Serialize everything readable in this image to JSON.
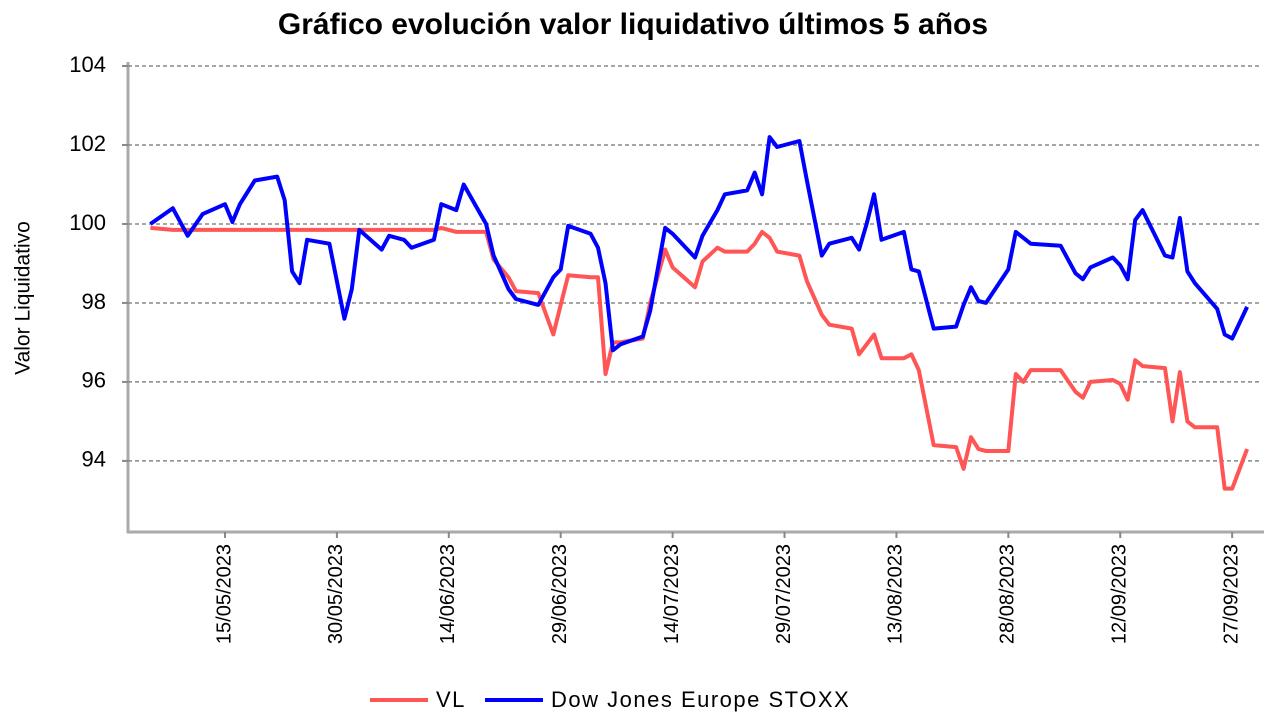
{
  "chart_data": {
    "type": "line",
    "title": "Gráfico evolución valor liquidativo últimos 5 años",
    "y_label": "Valor Liquidativo",
    "x": [
      "05/05/2023",
      "08/05/2023",
      "10/05/2023",
      "12/05/2023",
      "15/05/2023",
      "16/05/2023",
      "17/05/2023",
      "19/05/2023",
      "22/05/2023",
      "23/05/2023",
      "24/05/2023",
      "25/05/2023",
      "26/05/2023",
      "29/05/2023",
      "31/05/2023",
      "01/06/2023",
      "02/06/2023",
      "05/06/2023",
      "06/06/2023",
      "08/06/2023",
      "09/06/2023",
      "12/06/2023",
      "13/06/2023",
      "15/06/2023",
      "16/06/2023",
      "19/06/2023",
      "20/06/2023",
      "22/06/2023",
      "23/06/2023",
      "26/06/2023",
      "28/06/2023",
      "29/06/2023",
      "30/06/2023",
      "03/07/2023",
      "04/07/2023",
      "05/07/2023",
      "06/07/2023",
      "07/07/2023",
      "10/07/2023",
      "11/07/2023",
      "13/07/2023",
      "14/07/2023",
      "17/07/2023",
      "18/07/2023",
      "20/07/2023",
      "21/07/2023",
      "24/07/2023",
      "25/07/2023",
      "26/07/2023",
      "27/07/2023",
      "28/07/2023",
      "31/07/2023",
      "01/08/2023",
      "03/08/2023",
      "04/08/2023",
      "07/08/2023",
      "08/08/2023",
      "09/08/2023",
      "10/08/2023",
      "11/08/2023",
      "14/08/2023",
      "15/08/2023",
      "16/08/2023",
      "18/08/2023",
      "21/08/2023",
      "22/08/2023",
      "23/08/2023",
      "24/08/2023",
      "25/08/2023",
      "28/08/2023",
      "29/08/2023",
      "30/08/2023",
      "31/08/2023",
      "04/09/2023",
      "06/09/2023",
      "07/09/2023",
      "08/09/2023",
      "11/09/2023",
      "12/09/2023",
      "13/09/2023",
      "14/09/2023",
      "15/09/2023",
      "18/09/2023",
      "19/09/2023",
      "20/09/2023",
      "21/09/2023",
      "22/09/2023",
      "25/09/2023",
      "26/09/2023",
      "27/09/2023",
      "29/09/2023"
    ],
    "series": [
      {
        "name": "VL",
        "color": "#ff5555",
        "values": [
          99.9,
          99.85,
          99.85,
          99.85,
          99.85,
          99.85,
          99.85,
          99.85,
          99.85,
          99.85,
          99.85,
          99.85,
          99.85,
          99.85,
          99.85,
          99.85,
          99.85,
          99.85,
          99.85,
          99.85,
          99.85,
          99.85,
          99.9,
          99.8,
          99.8,
          99.8,
          99.1,
          98.65,
          98.3,
          98.25,
          97.2,
          97.95,
          98.7,
          98.65,
          98.65,
          96.2,
          97.0,
          97.0,
          97.1,
          98.0,
          99.35,
          98.9,
          98.4,
          99.05,
          99.4,
          99.3,
          99.3,
          99.5,
          99.8,
          99.65,
          99.3,
          99.2,
          98.55,
          97.7,
          97.45,
          97.35,
          96.7,
          96.95,
          97.2,
          96.6,
          96.6,
          96.7,
          96.3,
          94.4,
          94.35,
          93.8,
          94.6,
          94.3,
          94.25,
          94.25,
          96.2,
          96.0,
          96.3,
          96.3,
          95.75,
          95.6,
          96.0,
          96.05,
          95.95,
          95.55,
          96.55,
          96.4,
          96.35,
          95.0,
          96.25,
          95.0,
          94.85,
          94.85,
          93.3,
          93.3,
          94.3
        ]
      },
      {
        "name": "Dow Jones Europe STOXX",
        "color": "#0000ff",
        "values": [
          100.0,
          100.4,
          99.7,
          100.25,
          100.5,
          100.05,
          100.5,
          101.1,
          101.2,
          100.6,
          98.8,
          98.5,
          99.6,
          99.5,
          97.6,
          98.35,
          99.85,
          99.35,
          99.7,
          99.6,
          99.4,
          99.6,
          100.5,
          100.35,
          101.0,
          100.0,
          99.2,
          98.35,
          98.1,
          97.95,
          98.65,
          98.85,
          99.95,
          99.75,
          99.4,
          98.5,
          96.8,
          96.95,
          97.15,
          97.8,
          99.9,
          99.75,
          99.15,
          99.7,
          100.35,
          100.75,
          100.85,
          101.3,
          100.75,
          102.2,
          101.95,
          102.1,
          101.1,
          99.2,
          99.5,
          99.65,
          99.35,
          100.0,
          100.75,
          99.6,
          99.8,
          98.85,
          98.8,
          97.35,
          97.4,
          97.95,
          98.4,
          98.05,
          98.0,
          98.85,
          99.8,
          99.65,
          99.5,
          99.45,
          98.75,
          98.6,
          98.9,
          99.15,
          98.95,
          98.6,
          100.1,
          100.35,
          99.2,
          99.15,
          100.15,
          98.8,
          98.5,
          97.85,
          97.2,
          97.1,
          97.9
        ]
      }
    ],
    "xlim": [
      "02/05/2023",
      "01/10/2023"
    ],
    "xticks": [
      "15/05/2023",
      "30/05/2023",
      "14/06/2023",
      "29/06/2023",
      "14/07/2023",
      "29/07/2023",
      "13/08/2023",
      "28/08/2023",
      "12/09/2023",
      "27/09/2023"
    ],
    "ylim": [
      92.2,
      104
    ],
    "yticks": [
      94,
      96,
      98,
      100,
      102,
      104
    ],
    "grid": true
  }
}
